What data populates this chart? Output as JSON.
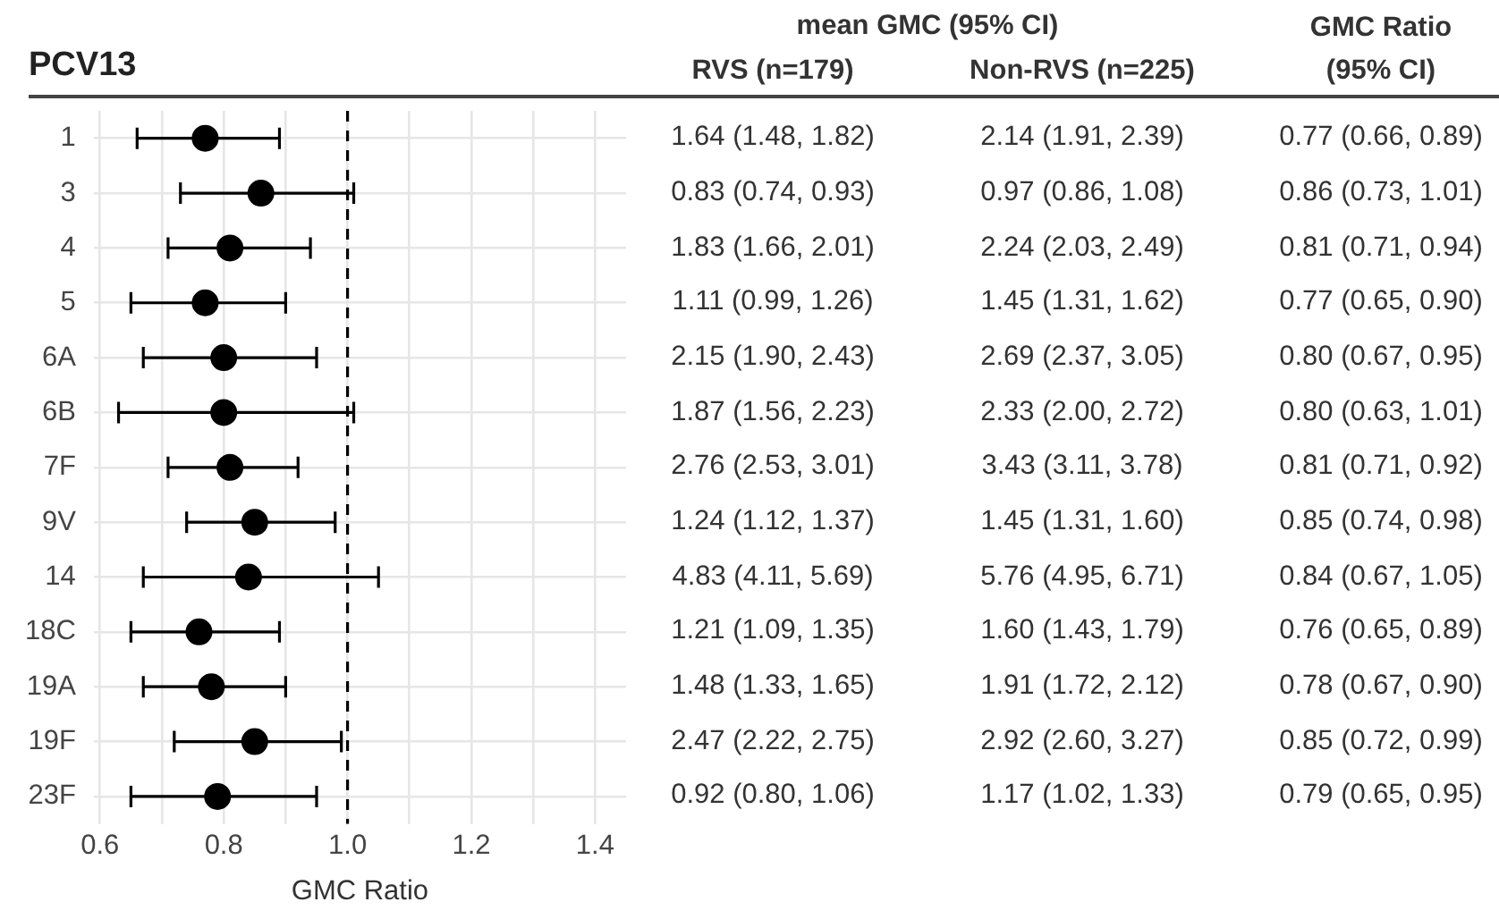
{
  "chart_data": [
    {
      "type": "scatter",
      "orientation": "horizontal",
      "title": "PCV13",
      "xlabel": "GMC Ratio",
      "categories": [
        "1",
        "3",
        "4",
        "5",
        "6A",
        "6B",
        "7F",
        "9V",
        "14",
        "18C",
        "19A",
        "19F",
        "23F"
      ],
      "values": [
        0.77,
        0.86,
        0.81,
        0.77,
        0.8,
        0.8,
        0.81,
        0.85,
        0.84,
        0.76,
        0.78,
        0.85,
        0.79
      ],
      "errors": [
        [
          0.66,
          0.89
        ],
        [
          0.73,
          1.01
        ],
        [
          0.71,
          0.94
        ],
        [
          0.65,
          0.9
        ],
        [
          0.67,
          0.95
        ],
        [
          0.63,
          1.01
        ],
        [
          0.71,
          0.92
        ],
        [
          0.74,
          0.98
        ],
        [
          0.67,
          1.05
        ],
        [
          0.65,
          0.89
        ],
        [
          0.67,
          0.9
        ],
        [
          0.72,
          0.99
        ],
        [
          0.65,
          0.95
        ]
      ],
      "color": "#000000",
      "marker": "circle",
      "xlim": [
        0.59,
        1.45
      ],
      "xticks": [
        0.6,
        {
          "value": 0.7,
          "label": null
        },
        0.8,
        {
          "value": 0.9,
          "label": null
        },
        {
          "value": 1.0,
          "label": "1.0"
        },
        {
          "value": 1.1,
          "label": null
        },
        1.2,
        {
          "value": 1.3,
          "label": null
        },
        1.4
      ],
      "grid": true,
      "legend": false,
      "ref_lines": [
        {
          "axis": "x",
          "value": 1.0,
          "line_style": "dashed",
          "color": "#000000"
        }
      ]
    },
    {
      "type": "other",
      "title": "mean GMC (95% CI)",
      "categories": [
        "RVS (n=179)",
        "Non-RVS (n=225)",
        "GMC Ratio (95% CI)"
      ],
      "annotations": [
        "1.64 (1.48, 1.82)",
        "2.14 (1.91, 2.39)",
        "0.77 (0.66, 0.89)",
        "0.83 (0.74, 0.93)",
        "0.97 (0.86, 1.08)",
        "0.86 (0.73, 1.01)",
        "1.83 (1.66, 2.01)",
        "2.24 (2.03, 2.49)",
        "0.81 (0.71, 0.94)",
        "1.11 (0.99, 1.26)",
        "1.45 (1.31, 1.62)",
        "0.77 (0.65, 0.90)",
        "2.15 (1.90, 2.43)",
        "2.69 (2.37, 3.05)",
        "0.80 (0.67, 0.95)",
        "1.87 (1.56, 2.23)",
        "2.33 (2.00, 2.72)",
        "0.80 (0.63, 1.01)",
        "2.76 (2.53, 3.01)",
        "3.43 (3.11, 3.78)",
        "0.81 (0.71, 0.92)",
        "1.24 (1.12, 1.37)",
        "1.45 (1.31, 1.60)",
        "0.85 (0.74, 0.98)",
        "4.83 (4.11, 5.69)",
        "5.76 (4.95, 6.71)",
        "0.84 (0.67, 1.05)",
        "1.21 (1.09, 1.35)",
        "1.60 (1.43, 1.79)",
        "0.76 (0.65, 0.89)",
        "1.48 (1.33, 1.65)",
        "1.91 (1.72, 2.12)",
        "0.78 (0.67, 0.90)",
        "2.47 (2.22, 2.75)",
        "2.92 (2.60, 3.27)",
        "0.85 (0.72, 0.99)",
        "0.92 (0.80, 1.06)",
        "1.17 (1.02, 1.33)",
        "0.79 (0.65, 0.95)"
      ]
    }
  ]
}
